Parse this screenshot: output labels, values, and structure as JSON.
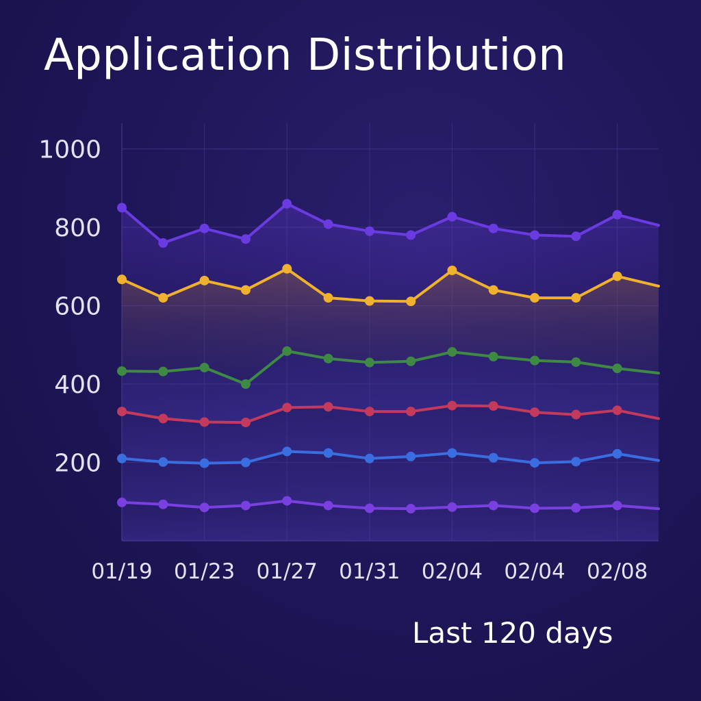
{
  "title": "Application Distribution",
  "subtitle": "Last 120 days",
  "colors": {
    "background": "#1f175a",
    "grid": "#3b3380",
    "axis_text": "#e4e1f2"
  },
  "chart_data": {
    "type": "line",
    "title": "Application Distribution",
    "subtitle": "Last 120 days",
    "xlabel": "",
    "ylabel": "",
    "ylim": [
      0,
      1000
    ],
    "y_ticks": [
      200,
      400,
      600,
      800,
      1000
    ],
    "x_tick_labels": [
      "01/19",
      "01/23",
      "01/27",
      "01/31",
      "02/04",
      "02/04",
      "02/08"
    ],
    "grid": true,
    "legend": "none",
    "area_fill": true,
    "series": [
      {
        "color": "#6a3be0",
        "values": [
          850,
          760,
          797,
          770,
          860,
          808,
          790,
          780,
          827,
          797,
          780,
          777,
          832,
          805
        ]
      },
      {
        "color": "#f0b22e",
        "values": [
          667,
          620,
          664,
          640,
          694,
          620,
          612,
          611,
          690,
          640,
          620,
          620,
          675,
          650
        ]
      },
      {
        "color": "#3e8a45",
        "values": [
          433,
          432,
          442,
          400,
          484,
          465,
          455,
          458,
          482,
          470,
          460,
          456,
          440,
          428
        ]
      },
      {
        "color": "#c43a5c",
        "values": [
          330,
          312,
          303,
          302,
          340,
          342,
          330,
          330,
          345,
          344,
          328,
          322,
          333,
          312
        ]
      },
      {
        "color": "#3a6ee0",
        "values": [
          210,
          201,
          198,
          200,
          228,
          224,
          210,
          215,
          224,
          212,
          199,
          202,
          222,
          205
        ]
      },
      {
        "color": "#7a3fe0",
        "values": [
          98,
          93,
          85,
          90,
          102,
          90,
          83,
          82,
          86,
          90,
          83,
          84,
          90,
          82
        ]
      }
    ]
  }
}
